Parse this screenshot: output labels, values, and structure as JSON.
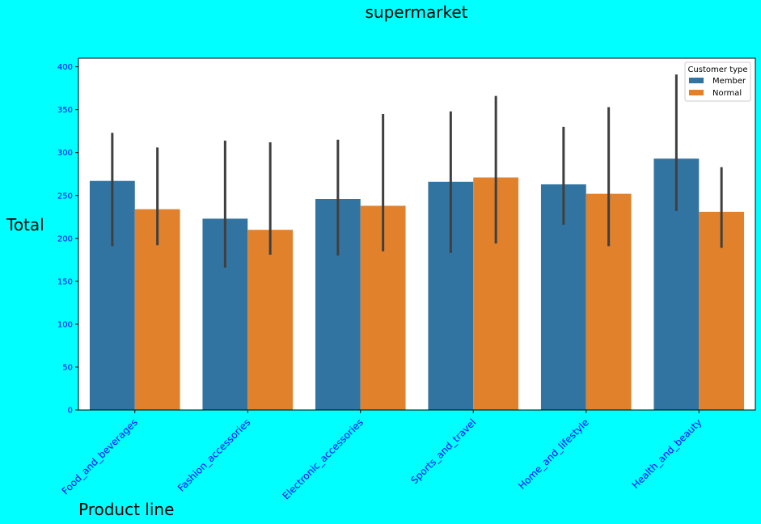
{
  "chart_data": {
    "type": "bar",
    "title": "supermarket",
    "xlabel": "Product line",
    "ylabel": "Total",
    "ylim": [
      0,
      410
    ],
    "yticks": [
      0,
      50,
      100,
      150,
      200,
      250,
      300,
      350,
      400
    ],
    "categories": [
      "Food_and_beverages",
      "Fashion_accessories",
      "Electronic_accessories",
      "Sports_and_travel",
      "Home_and_lifestyle",
      "Health_and_beauty"
    ],
    "series": [
      {
        "name": "Member",
        "color": "#3274a1",
        "values": [
          267,
          223,
          246,
          266,
          263,
          293
        ],
        "ci_low": [
          191,
          166,
          180,
          183,
          216,
          232
        ],
        "ci_high": [
          323,
          314,
          315,
          348,
          330,
          391
        ]
      },
      {
        "name": "Normal",
        "color": "#e1812c",
        "values": [
          234,
          210,
          238,
          271,
          252,
          231
        ],
        "ci_low": [
          192,
          181,
          185,
          194,
          191,
          189
        ],
        "ci_high": [
          306,
          312,
          345,
          366,
          353,
          283
        ]
      }
    ],
    "legend": {
      "title": "Customer type",
      "placement": "top-right"
    },
    "grid": false,
    "background": "#00ffff",
    "plot_background": "#ffffff",
    "tick_color": "#0000ff",
    "errorbar_color": "#3f3f3f"
  }
}
